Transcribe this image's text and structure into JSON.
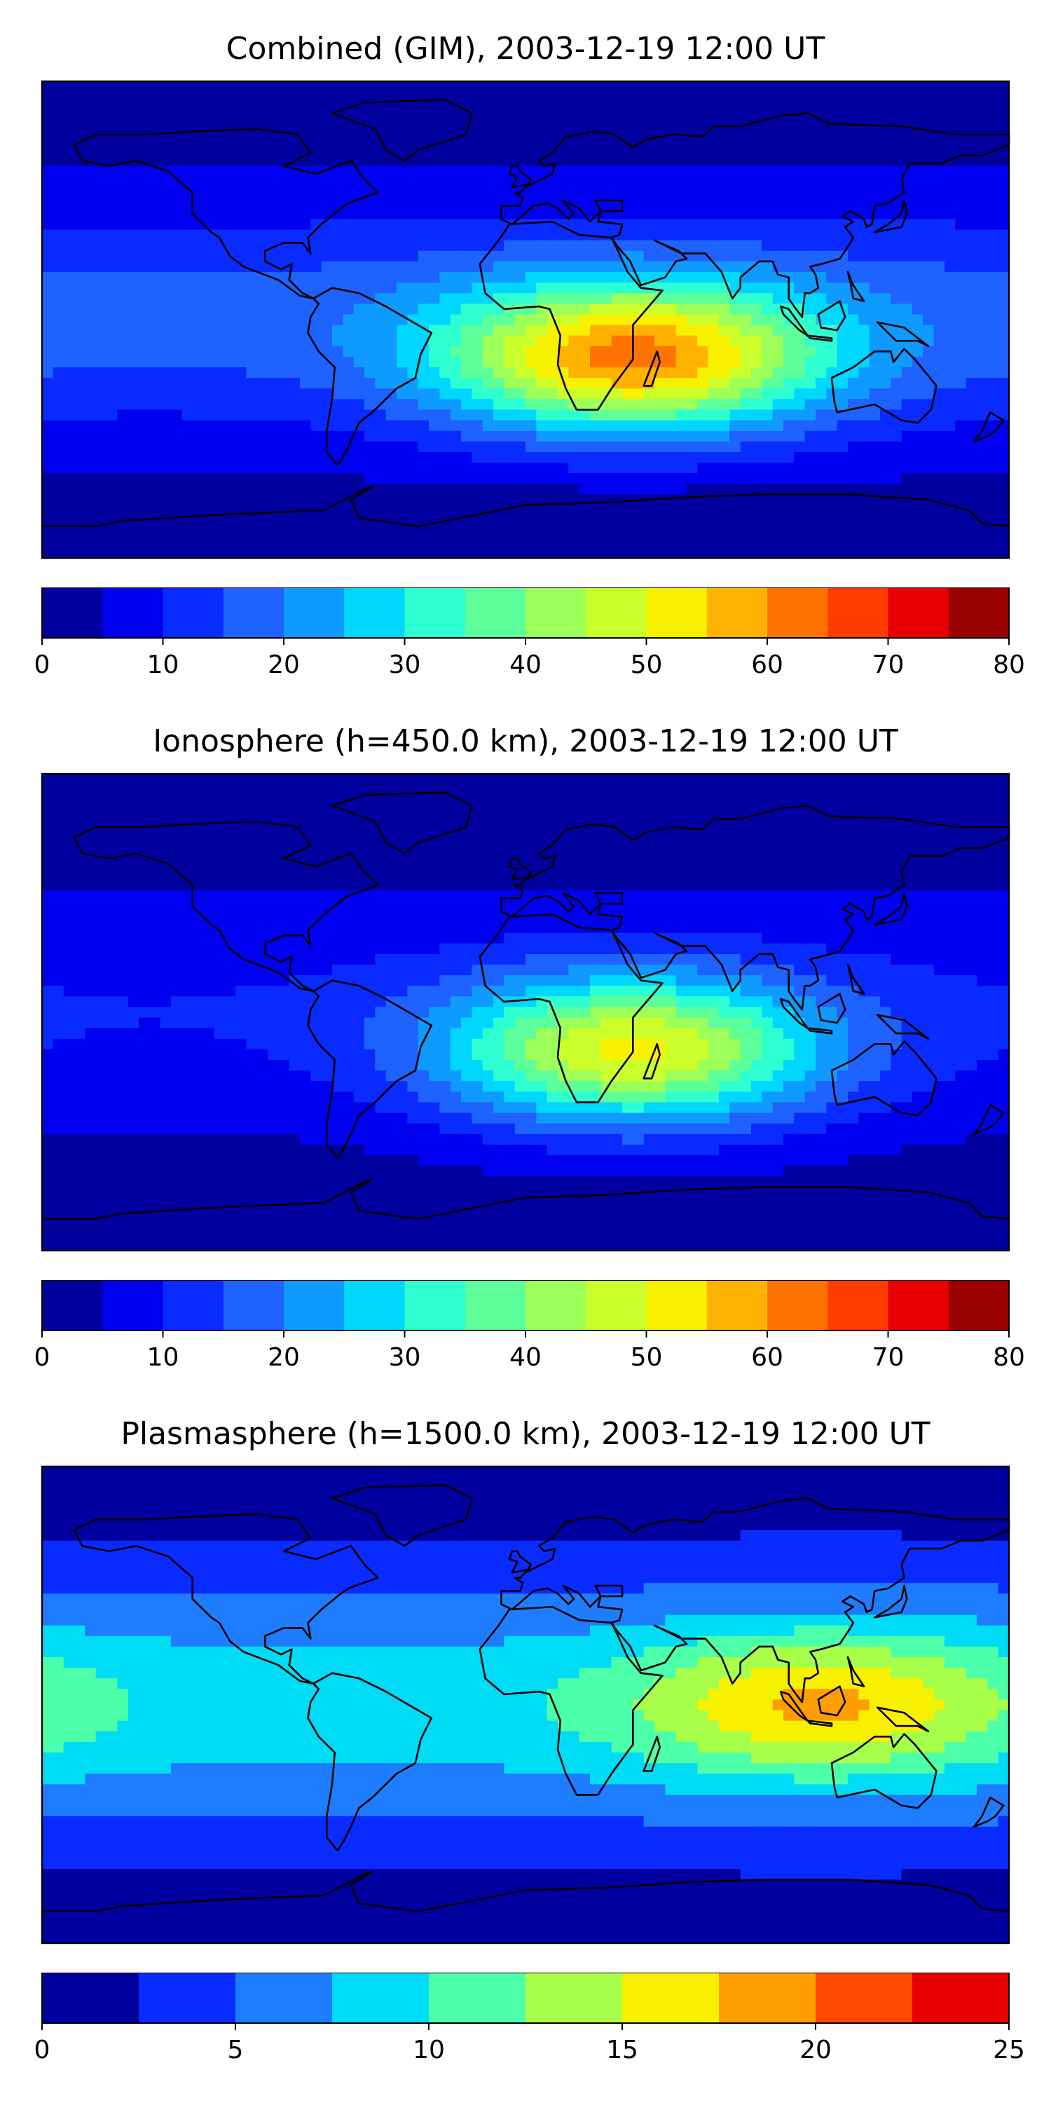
{
  "chart_data": [
    {
      "type": "heatmap",
      "title": "Combined (GIM), 2003-12-19 12:00 UT",
      "colorbar": {
        "ticks": [
          "0",
          "10",
          "20",
          "30",
          "40",
          "50",
          "60",
          "70",
          "80"
        ],
        "range": [
          0,
          80
        ],
        "levels": [
          0,
          5,
          10,
          15,
          20,
          25,
          30,
          35,
          40,
          45,
          50,
          55,
          60,
          65,
          70,
          75,
          80
        ],
        "colors": [
          "#00009f",
          "#0000f0",
          "#0a2bff",
          "#1e62ff",
          "#0f9aff",
          "#00d7ff",
          "#2effd0",
          "#5cff99",
          "#9cff5a",
          "#cbff2b",
          "#f7f100",
          "#ffb300",
          "#ff7400",
          "#ff3b00",
          "#e80000",
          "#9a0000"
        ]
      },
      "peak": {
        "lon": 40,
        "lat": -15,
        "value": 62
      },
      "background_value": 15
    },
    {
      "type": "heatmap",
      "title": "Ionosphere  (h=450.0 km), 2003-12-19 12:00 UT",
      "colorbar": {
        "ticks": [
          "0",
          "10",
          "20",
          "30",
          "40",
          "50",
          "60",
          "70",
          "80"
        ],
        "range": [
          0,
          80
        ],
        "levels": [
          0,
          5,
          10,
          15,
          20,
          25,
          30,
          35,
          40,
          45,
          50,
          55,
          60,
          65,
          70,
          75,
          80
        ],
        "colors": [
          "#00009f",
          "#0000f0",
          "#0a2bff",
          "#1e62ff",
          "#0f9aff",
          "#00d7ff",
          "#2effd0",
          "#5cff99",
          "#9cff5a",
          "#cbff2b",
          "#f7f100",
          "#ffb300",
          "#ff7400",
          "#ff3b00",
          "#e80000",
          "#9a0000"
        ]
      },
      "peak": {
        "lon": 40,
        "lat": -15,
        "value": 50
      },
      "background_value": 8
    },
    {
      "type": "heatmap",
      "title": "Plasmasphere (h=1500.0 km), 2003-12-19 12:00 UT",
      "colorbar": {
        "ticks": [
          "0",
          "5",
          "10",
          "15",
          "20",
          "25"
        ],
        "range": [
          0,
          25
        ],
        "levels": [
          0,
          2.5,
          5,
          7.5,
          10,
          12.5,
          15,
          17.5,
          20,
          22.5,
          25
        ],
        "colors": [
          "#00009f",
          "#0a2bff",
          "#1e7dff",
          "#00dcf5",
          "#4cffa9",
          "#a8ff4a",
          "#f7f100",
          "#ff9e00",
          "#ff4a00",
          "#e80000"
        ]
      },
      "peak": {
        "lon": 110,
        "lat": 0,
        "value": 16
      },
      "background_value": 7
    }
  ]
}
